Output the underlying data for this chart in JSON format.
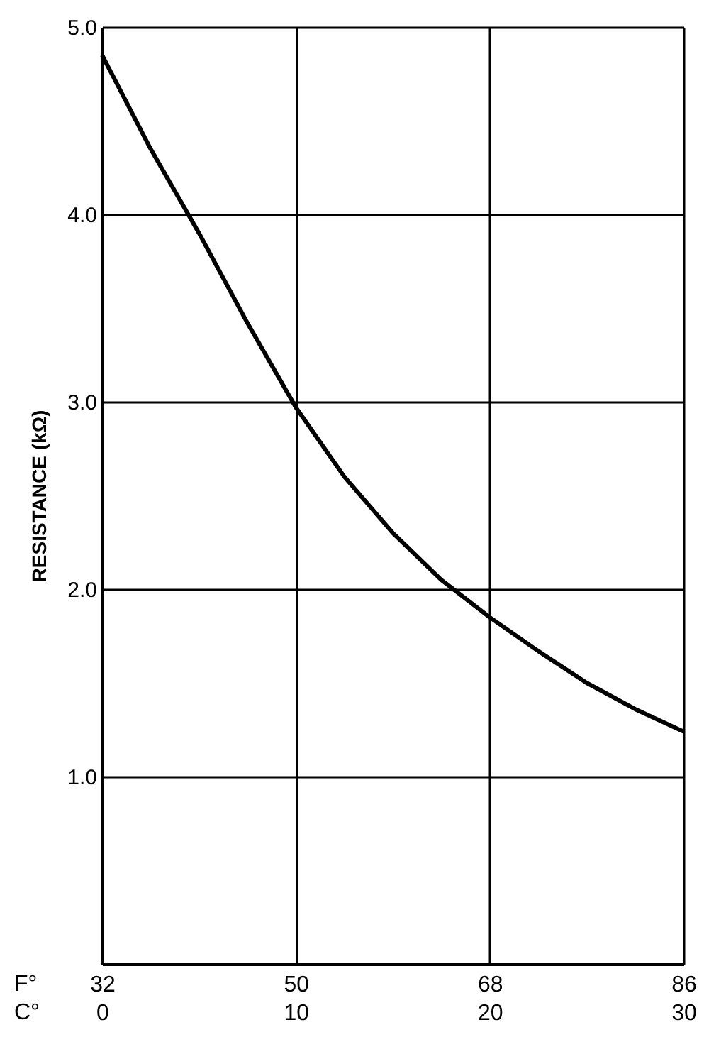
{
  "chart_data": {
    "type": "line",
    "ylabel": "RESISTANCE (kΩ)",
    "x": [
      0,
      2.5,
      5,
      7.5,
      10,
      12.5,
      15,
      17.5,
      20,
      22.5,
      25,
      27.5,
      30
    ],
    "series": [
      {
        "color": "#000000",
        "values": [
          4.85,
          4.35,
          3.9,
          3.42,
          2.97,
          2.6,
          2.3,
          2.05,
          1.85,
          1.67,
          1.5,
          1.36,
          1.24
        ]
      }
    ],
    "xlim": [
      0,
      30
    ],
    "xticks": [
      0,
      10,
      20,
      30
    ],
    "x2lim": [
      32,
      86
    ],
    "x2ticks": [
      32,
      50,
      68,
      86
    ],
    "ylim": [
      0,
      5
    ],
    "yticks": [
      {
        "value": 1,
        "label": "1.0"
      },
      {
        "value": 2,
        "label": "2.0"
      },
      {
        "value": 3,
        "label": "3.0"
      },
      {
        "value": 4,
        "label": "4.0"
      },
      {
        "value": 5,
        "label": "5.0"
      }
    ],
    "grid": true,
    "marker": "none",
    "line_style": "solid",
    "annotations": [
      "F°",
      "C°"
    ]
  }
}
